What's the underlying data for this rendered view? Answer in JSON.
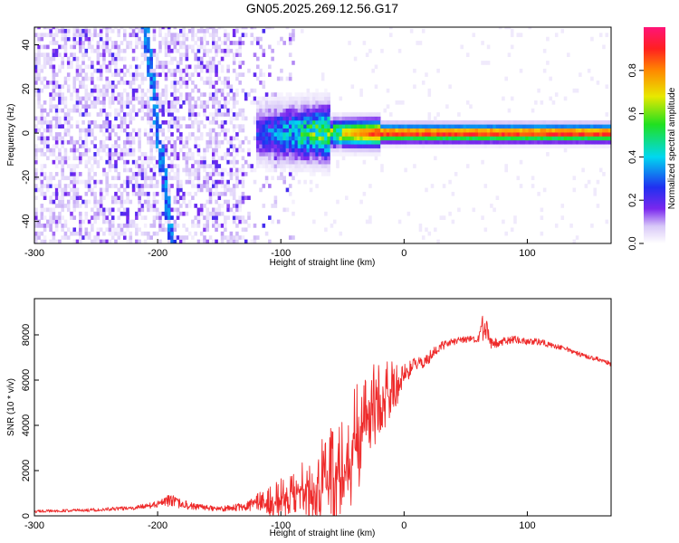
{
  "page": {
    "title": "GN05.2025.269.12.56.G17"
  },
  "colors": {
    "snr_line": "#ee2a2a",
    "background": "#ffffff",
    "axes": "#000000"
  },
  "chart_data": [
    {
      "type": "heatmap",
      "xlabel": "Height of straight line (km)",
      "ylabel": "Frequency (Hz)",
      "xlim": [
        -300,
        168
      ],
      "ylim": [
        -50,
        48
      ],
      "xticks": [
        -300,
        -200,
        -100,
        0,
        100
      ],
      "yticks": [
        -40,
        -20,
        0,
        20,
        40
      ],
      "colormap": "rainbow (white → violet → blue → cyan → green → yellow → red → magenta)",
      "colorbar": {
        "label": "Normalized spectral amplitude",
        "range": [
          0,
          1
        ],
        "ticks": [
          0.0,
          0.2,
          0.4,
          0.6,
          0.8
        ]
      },
      "features": {
        "dominant_ridge": {
          "x_range": [
            -120,
            168
          ],
          "frequency_hz": 0,
          "peak_amplitude": 0.95
        },
        "diagonal_streak": {
          "x_start": -210,
          "y_start": 48,
          "x_end": -188,
          "y_end": -50,
          "amplitude": 0.25
        },
        "diffuse_noise_region": {
          "x_range": [
            -300,
            -88
          ],
          "amplitude_range": [
            0.02,
            0.25
          ]
        }
      },
      "grid": false
    },
    {
      "type": "line",
      "xlabel": "Height of straight line (km)",
      "ylabel": "SNR (10 * v/v)",
      "xlim": [
        -300,
        168
      ],
      "ylim": [
        0,
        9600
      ],
      "xticks": [
        -300,
        -200,
        -100,
        0,
        100
      ],
      "yticks": [
        0,
        2000,
        4000,
        6000,
        8000
      ],
      "grid": false,
      "series": [
        {
          "color": "#ee2a2a",
          "x": [
            -300,
            -260,
            -220,
            -200,
            -190,
            -180,
            -150,
            -130,
            -110,
            -90,
            -70,
            -55,
            -45,
            -35,
            -25,
            -15,
            -5,
            0,
            10,
            20,
            30,
            40,
            50,
            60,
            65,
            70,
            80,
            90,
            100,
            110,
            120,
            130,
            140,
            150,
            160,
            168
          ],
          "y": [
            200,
            250,
            350,
            500,
            700,
            500,
            300,
            400,
            800,
            1200,
            1800,
            2600,
            3300,
            4200,
            5200,
            5800,
            6000,
            6300,
            6700,
            7000,
            7500,
            7700,
            7800,
            7800,
            8600,
            7600,
            7700,
            7800,
            7700,
            7700,
            7500,
            7400,
            7200,
            7000,
            6900,
            6700
          ],
          "noise_amplitude": [
            60,
            70,
            90,
            150,
            280,
            200,
            100,
            200,
            550,
            800,
            1300,
            1700,
            1900,
            1900,
            1600,
            1200,
            700,
            450,
            350,
            300,
            200,
            180,
            150,
            150,
            600,
            250,
            180,
            160,
            160,
            150,
            130,
            120,
            110,
            100,
            100,
            100
          ]
        }
      ]
    }
  ]
}
